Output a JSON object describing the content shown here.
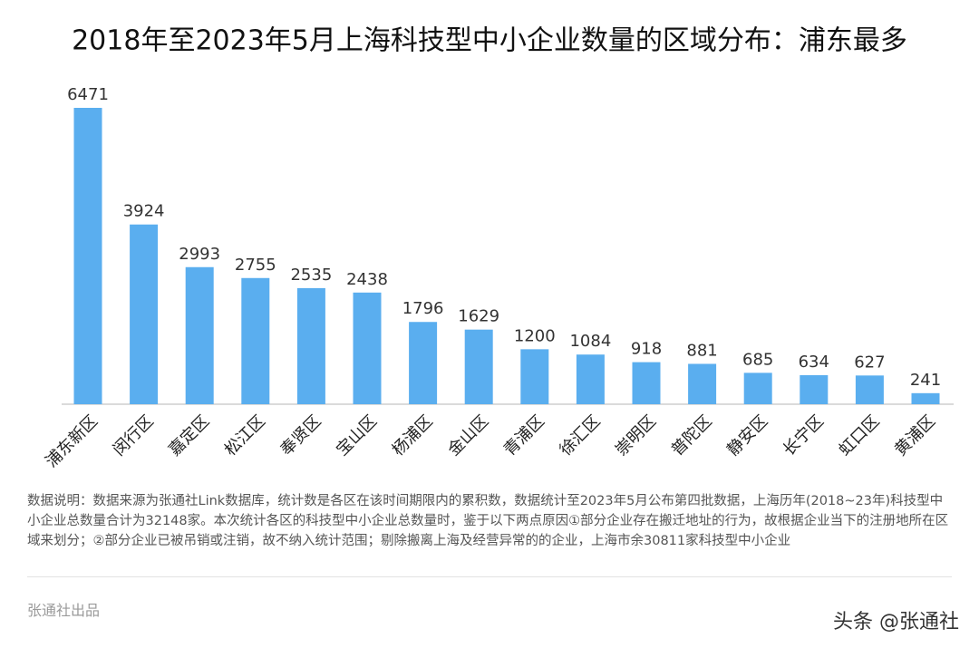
{
  "chart_data": {
    "type": "bar",
    "title": "2018年至2023年5月上海科技型中小企业数量的区域分布：浦东最多",
    "categories": [
      "浦东新区",
      "闵行区",
      "嘉定区",
      "松江区",
      "奉贤区",
      "宝山区",
      "杨浦区",
      "金山区",
      "青浦区",
      "徐汇区",
      "崇明区",
      "普陀区",
      "静安区",
      "长宁区",
      "虹口区",
      "黄浦区"
    ],
    "values": [
      6471,
      3924,
      2993,
      2755,
      2535,
      2438,
      1796,
      1629,
      1200,
      1084,
      918,
      881,
      685,
      634,
      627,
      241
    ],
    "color": "#5aaeef",
    "note": "数据说明：数据来源为张通社Link数据库，统计数是各区在该时间期限内的累积数，数据统计至2023年5月公布第四批数据，上海历年(2018~23年)科技型中小企业总数量合计为32148家。本次统计各区的科技型中小企业总数量时，鉴于以下两点原因①部分企业存在搬迁地址的行为，故根据企业当下的注册地所在区域来划分；②部分企业已被吊销或注销，故不纳入统计范围；剔除搬离上海及经营异常的的企业，上海市余30811家科技型中小企业",
    "source": "张通社出品",
    "watermark": "头条 @张通社"
  }
}
